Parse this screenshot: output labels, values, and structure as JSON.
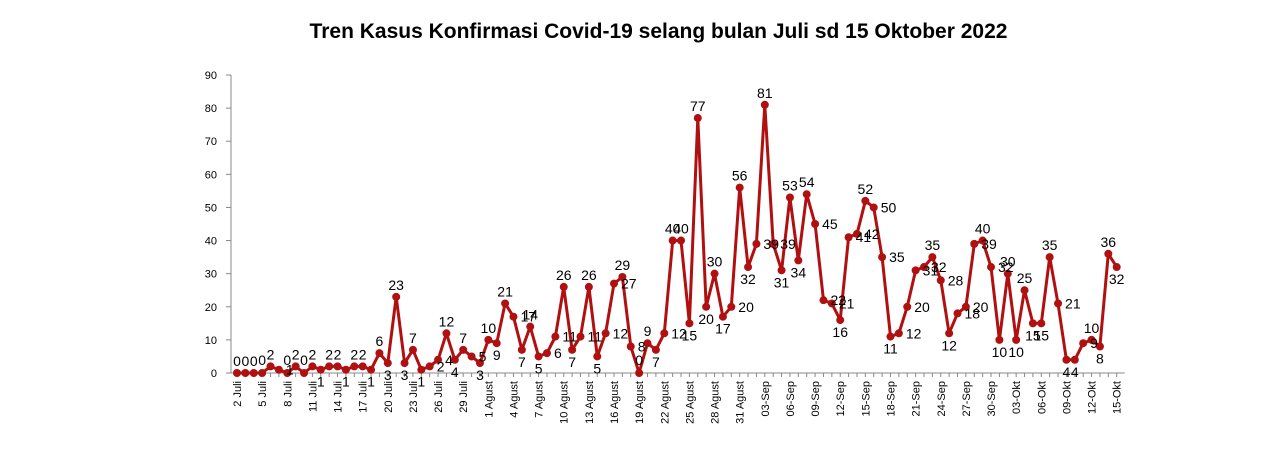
{
  "chart_data": {
    "type": "line",
    "title": "Tren Kasus Konfirmasi Covid-19 selang bulan Juli  sd  15 Oktober 2022",
    "xlabel": "",
    "ylabel": "",
    "ylim": [
      0,
      90
    ],
    "yticks": [
      0,
      10,
      20,
      30,
      40,
      50,
      60,
      70,
      80,
      90
    ],
    "grid": false,
    "legend": "none",
    "line_color": "#b01010",
    "x_tick_labels": [
      "2 Juli",
      "5 Juli",
      "8 Juli",
      "11 Juli",
      "14 Juli",
      "17 Juli",
      "20 Juli",
      "23 Juli",
      "26 Juli",
      "29 Juli",
      "1 Agust",
      "4 Agust",
      "7 Agust",
      "10 Agust",
      "13 Agust",
      "16 Agust",
      "19 Agust",
      "22 Agust",
      "25 Agust",
      "28 Agust",
      "31 Agust",
      "03-Sep",
      "06-Sep",
      "09-Sep",
      "12-Sep",
      "15-Sep",
      "18-Sep",
      "21-Sep",
      "24-Sep",
      "27-Sep",
      "30-Sep",
      "03-Okt",
      "06-Okt",
      "09-Okt",
      "12-Okt",
      "15-Okt"
    ],
    "values": [
      0,
      0,
      0,
      0,
      2,
      1,
      0,
      2,
      0,
      2,
      1,
      2,
      2,
      1,
      2,
      2,
      1,
      6,
      3,
      23,
      3,
      7,
      1,
      2,
      4,
      12,
      4,
      7,
      5,
      3,
      10,
      9,
      21,
      17,
      7,
      14,
      5,
      6,
      11,
      26,
      7,
      11,
      26,
      5,
      12,
      27,
      29,
      8,
      0,
      9,
      7,
      12,
      40,
      40,
      15,
      77,
      20,
      30,
      17,
      20,
      56,
      32,
      39,
      81,
      39,
      31,
      53,
      34,
      54,
      45,
      22,
      21,
      16,
      41,
      42,
      52,
      50,
      35,
      11,
      12,
      20,
      31,
      32,
      35,
      28,
      12,
      18,
      20,
      39,
      40,
      32,
      10,
      30,
      10,
      25,
      15,
      15,
      35,
      21,
      4,
      4,
      9,
      10,
      8,
      36,
      32
    ],
    "data_labels": [
      "0",
      "0",
      "0",
      "0",
      "2",
      "1",
      "0",
      "2",
      "0",
      "2",
      "1",
      "2",
      "2",
      "1",
      "2",
      "2",
      "1",
      "6",
      "3",
      "23",
      "3",
      "7",
      "1",
      "2",
      "4",
      "12",
      "4",
      "7",
      "5",
      "3",
      "10",
      "9",
      "21",
      "17",
      "7",
      "14",
      "5",
      "6",
      "11",
      "26",
      "7",
      "11",
      "26",
      "5",
      "12",
      "27",
      "29",
      "8",
      "0",
      "9",
      "7",
      "12",
      "40",
      "40",
      "15",
      "77",
      "20",
      "30",
      "17",
      "20",
      "56",
      "32",
      "39",
      "81",
      "39",
      "31",
      "53",
      "34",
      "54",
      "45",
      "22",
      "21",
      "16",
      "41",
      "42",
      "52",
      "50",
      "35",
      "11",
      "12",
      "20",
      "31",
      "32",
      "35",
      "28",
      "12",
      "18",
      "20",
      "39",
      "40",
      "32",
      "10",
      "30",
      "10",
      "25",
      "15",
      "15",
      "35",
      "21",
      "4",
      "4",
      "9",
      "10",
      "8",
      "36",
      "32"
    ]
  }
}
